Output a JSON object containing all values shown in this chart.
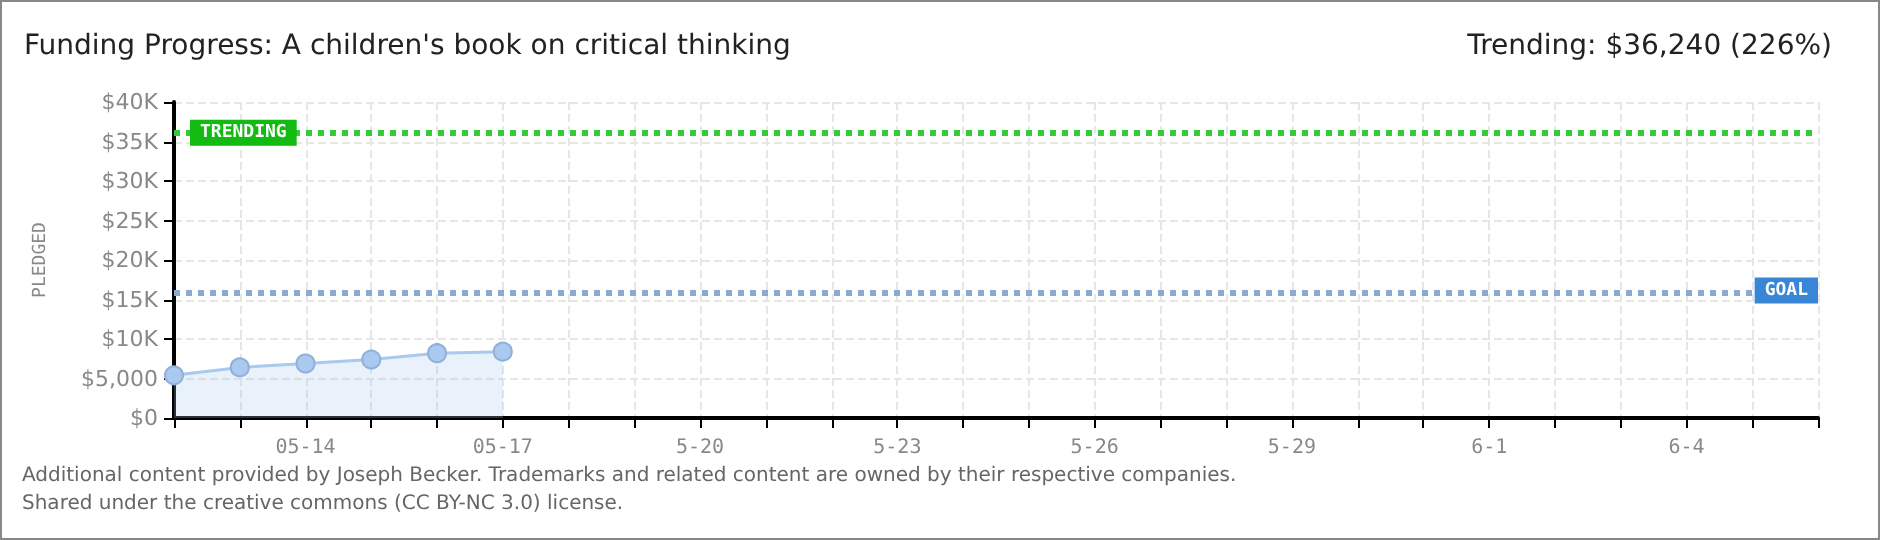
{
  "chart_data": {
    "type": "area",
    "title": "Funding Progress: A children's book on critical thinking",
    "subtitle": "Trending: $36,240 (226%)",
    "ylabel": "PLEDGED",
    "categories": [
      null,
      null,
      "05-14",
      null,
      null,
      "05-17",
      null,
      null,
      "5-20",
      null,
      null,
      "5-23",
      null,
      null,
      "5-26",
      null,
      null,
      "5-29",
      null,
      null,
      "6-1",
      null,
      null,
      "6-4",
      null,
      null
    ],
    "series": [
      {
        "color": "#a9c9ee",
        "values": [
          5400,
          6400,
          6900,
          7400,
          8200,
          8400,
          null,
          null,
          null,
          null,
          null,
          null,
          null,
          null,
          null,
          null,
          null,
          null,
          null,
          null,
          null,
          null,
          null,
          null,
          null,
          null
        ]
      }
    ],
    "ylim": [
      0,
      40000
    ],
    "yticks": [
      {
        "value": 0,
        "label": "$0"
      },
      {
        "value": 5000,
        "label": "$5,000"
      },
      {
        "value": 10000,
        "label": "$10K"
      },
      {
        "value": 15000,
        "label": "$15K"
      },
      {
        "value": 20000,
        "label": "$20K"
      },
      {
        "value": 25000,
        "label": "$25K"
      },
      {
        "value": 30000,
        "label": "$30K"
      },
      {
        "value": 35000,
        "label": "$35K"
      },
      {
        "value": 40000,
        "label": "$40K"
      }
    ],
    "grid": true,
    "marker": "circle",
    "ref_lines": [
      {
        "axis": "y",
        "value": 36240,
        "label": "TRENDING",
        "color": "#33cc33",
        "line_style": "dotted"
      },
      {
        "axis": "y",
        "value": 16000,
        "label": "GOAL",
        "color": "#8aaad0",
        "line_style": "dotted"
      }
    ],
    "annotations": [
      "Additional content provided by Joseph Becker. Trademarks and related content are owned by their respective companies.",
      "Shared under the creative commons (CC BY-NC 3.0) license."
    ]
  }
}
